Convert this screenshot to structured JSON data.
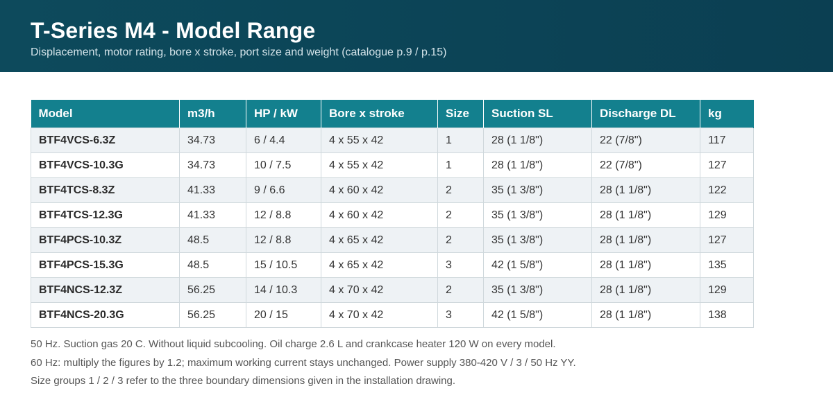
{
  "header": {
    "title": "T-Series M4 - Model Range",
    "subtitle": "Displacement, motor rating, bore x stroke, port size and weight (catalogue p.9 / p.15)"
  },
  "table": {
    "columns": [
      "Model",
      "m3/h",
      "HP / kW",
      "Bore x stroke",
      "Size",
      "Suction SL",
      "Discharge DL",
      "kg"
    ],
    "rows": [
      [
        "BTF4VCS-6.3Z",
        "34.73",
        "6 / 4.4",
        "4 x 55 x 42",
        "1",
        "28 (1 1/8\")",
        "22 (7/8\")",
        "117"
      ],
      [
        "BTF4VCS-10.3G",
        "34.73",
        "10 / 7.5",
        "4 x 55 x 42",
        "1",
        "28 (1 1/8\")",
        "22 (7/8\")",
        "127"
      ],
      [
        "BTF4TCS-8.3Z",
        "41.33",
        "9 / 6.6",
        "4 x 60 x 42",
        "2",
        "35 (1 3/8\")",
        "28 (1 1/8\")",
        "122"
      ],
      [
        "BTF4TCS-12.3G",
        "41.33",
        "12 / 8.8",
        "4 x 60 x 42",
        "2",
        "35 (1 3/8\")",
        "28 (1 1/8\")",
        "129"
      ],
      [
        "BTF4PCS-10.3Z",
        "48.5",
        "12 / 8.8",
        "4 x 65 x 42",
        "2",
        "35 (1 3/8\")",
        "28 (1 1/8\")",
        "127"
      ],
      [
        "BTF4PCS-15.3G",
        "48.5",
        "15 / 10.5",
        "4 x 65 x 42",
        "3",
        "42 (1 5/8\")",
        "28 (1 1/8\")",
        "135"
      ],
      [
        "BTF4NCS-12.3Z",
        "56.25",
        "14 / 10.3",
        "4 x 70 x 42",
        "2",
        "35 (1 3/8\")",
        "28 (1 1/8\")",
        "129"
      ],
      [
        "BTF4NCS-20.3G",
        "56.25",
        "20 / 15",
        "4 x 70 x 42",
        "3",
        "42 (1 5/8\")",
        "28 (1 1/8\")",
        "138"
      ]
    ]
  },
  "notes": [
    "50 Hz. Suction gas 20 C. Without liquid subcooling. Oil charge 2.6 L and crankcase heater 120 W on every model.",
    "60 Hz: multiply the figures by 1.2; maximum working current stays unchanged. Power supply 380-420 V / 3 / 50 Hz YY.",
    "Size groups 1 / 2 / 3 refer to the three boundary dimensions given in the installation drawing."
  ],
  "colors": {
    "header_bg": "#0d4a5c",
    "table_header_bg": "#13808e",
    "row_stripe": "#eef2f5"
  }
}
